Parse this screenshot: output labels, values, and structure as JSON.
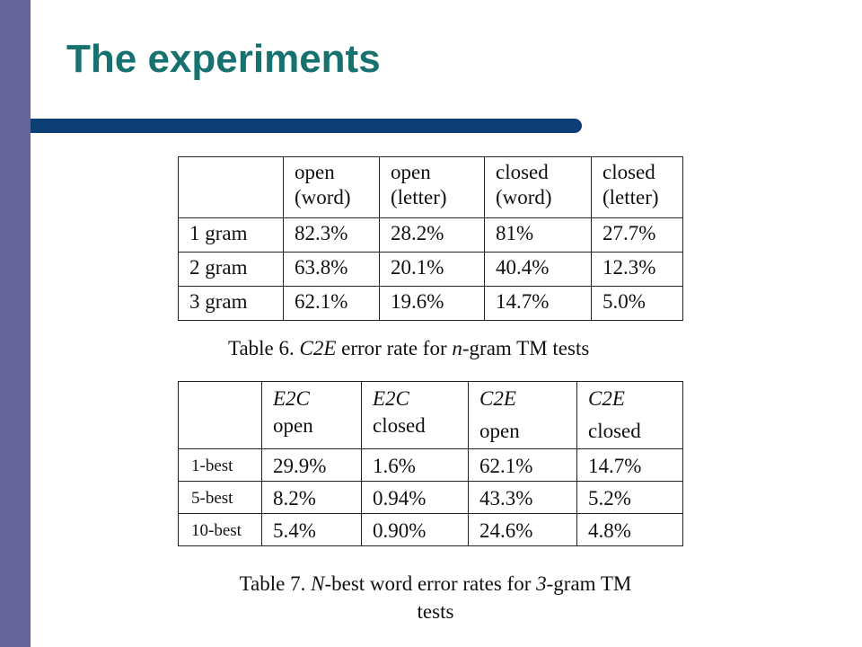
{
  "slide": {
    "title": "The experiments",
    "colors": {
      "sidebar": "#64649a",
      "title": "#16716f",
      "bar": "#0c3d73"
    }
  },
  "table6": {
    "headers": [
      [
        "open",
        "(word)"
      ],
      [
        "open",
        "(letter)"
      ],
      [
        "closed",
        "(word)"
      ],
      [
        "closed",
        "(letter)"
      ]
    ],
    "rows": [
      {
        "label": "1 gram",
        "values": [
          "82.3%",
          "28.2%",
          "81%",
          "27.7%"
        ]
      },
      {
        "label": "2 gram",
        "values": [
          "63.8%",
          "20.1%",
          "40.4%",
          "12.3%"
        ]
      },
      {
        "label": "3 gram",
        "values": [
          "62.1%",
          "19.6%",
          "14.7%",
          "5.0%"
        ]
      }
    ],
    "caption": {
      "prefix": "Table 6. ",
      "c2e": "C2E",
      "mid": " error rate for ",
      "n": "n",
      "suffix": "-gram TM tests"
    }
  },
  "table7": {
    "headers": [
      [
        "E2C",
        "open"
      ],
      [
        "E2C",
        "closed"
      ],
      [
        "C2E",
        "open"
      ],
      [
        "C2E",
        "closed"
      ]
    ],
    "rows": [
      {
        "label": "1-best",
        "values": [
          "29.9%",
          "1.6%",
          "62.1%",
          "14.7%"
        ]
      },
      {
        "label": "5-best",
        "values": [
          "8.2%",
          "0.94%",
          "43.3%",
          "5.2%"
        ]
      },
      {
        "label": "10-best",
        "values": [
          "5.4%",
          "0.90%",
          "24.6%",
          "4.8%"
        ]
      }
    ],
    "caption": {
      "prefix": "Table 7. ",
      "n": "N",
      "mid": "-best word error rates for ",
      "three": "3",
      "suffix": "-gram TM",
      "line2": "tests"
    }
  }
}
